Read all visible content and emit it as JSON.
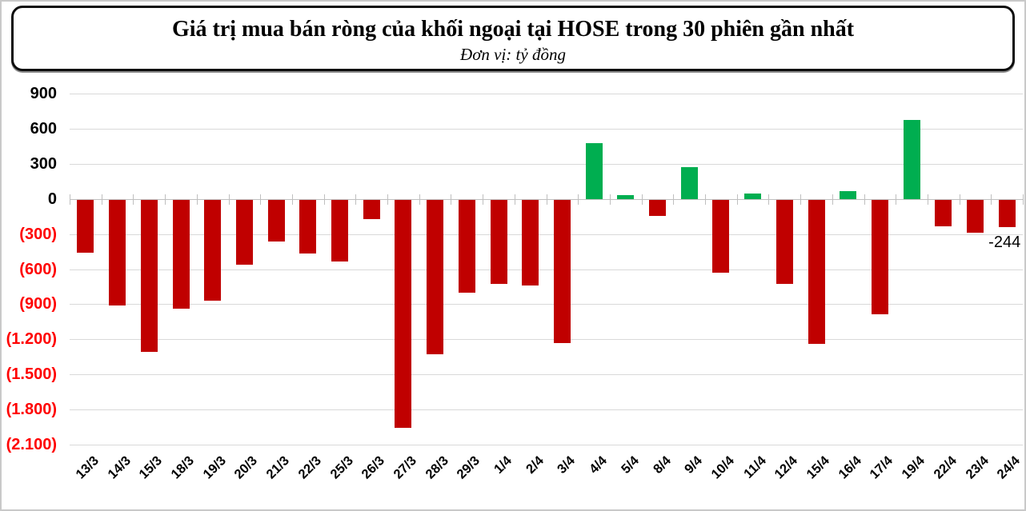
{
  "title": "Giá trị mua bán ròng của khối ngoại tại HOSE trong 30 phiên gần nhất",
  "subtitle": "Đơn vị: tỷ đồng",
  "colors": {
    "positive_bar": "#00AE50",
    "negative_bar": "#C00000",
    "ytick_positive": "#000000",
    "ytick_negative": "#FF0000",
    "gridline": "#D9D9D9",
    "axis": "#BFBFBF",
    "data_label": "#000000"
  },
  "chart_data": {
    "type": "bar",
    "title": "Giá trị mua bán ròng của khối ngoại tại HOSE trong 30 phiên gần nhất",
    "unit_label": "Đơn vị: tỷ đồng",
    "xlabel": "",
    "ylabel": "",
    "categories": [
      "13/3",
      "14/3",
      "15/3",
      "18/3",
      "19/3",
      "20/3",
      "21/3",
      "22/3",
      "25/3",
      "26/3",
      "27/3",
      "28/3",
      "29/3",
      "1/4",
      "2/4",
      "3/4",
      "4/4",
      "5/4",
      "8/4",
      "9/4",
      "10/4",
      "11/4",
      "12/4",
      "15/4",
      "16/4",
      "17/4",
      "19/4",
      "22/4",
      "23/4",
      "24/4"
    ],
    "values": [
      -460,
      -910,
      -1305,
      -940,
      -870,
      -565,
      -365,
      -465,
      -535,
      -175,
      -1960,
      -1325,
      -800,
      -730,
      -740,
      -1235,
      480,
      30,
      -145,
      270,
      -630,
      45,
      -725,
      -1240,
      70,
      -985,
      675,
      -235,
      -290,
      -244
    ],
    "ylim": [
      -2100,
      900
    ],
    "ytick_step": 300,
    "yticks": [
      {
        "value": 900,
        "label": "900"
      },
      {
        "value": 600,
        "label": "600"
      },
      {
        "value": 300,
        "label": "300"
      },
      {
        "value": 0,
        "label": "0"
      },
      {
        "value": -300,
        "label": "(300)"
      },
      {
        "value": -600,
        "label": "(600)"
      },
      {
        "value": -900,
        "label": "(900)"
      },
      {
        "value": -1200,
        "label": "(1.200)"
      },
      {
        "value": -1500,
        "label": "(1.500)"
      },
      {
        "value": -1800,
        "label": "(1.800)"
      },
      {
        "value": -2100,
        "label": "(2.100)"
      }
    ],
    "grid": true,
    "legend": false,
    "annotations": [
      {
        "category": "24/4",
        "text": "-244"
      }
    ]
  }
}
